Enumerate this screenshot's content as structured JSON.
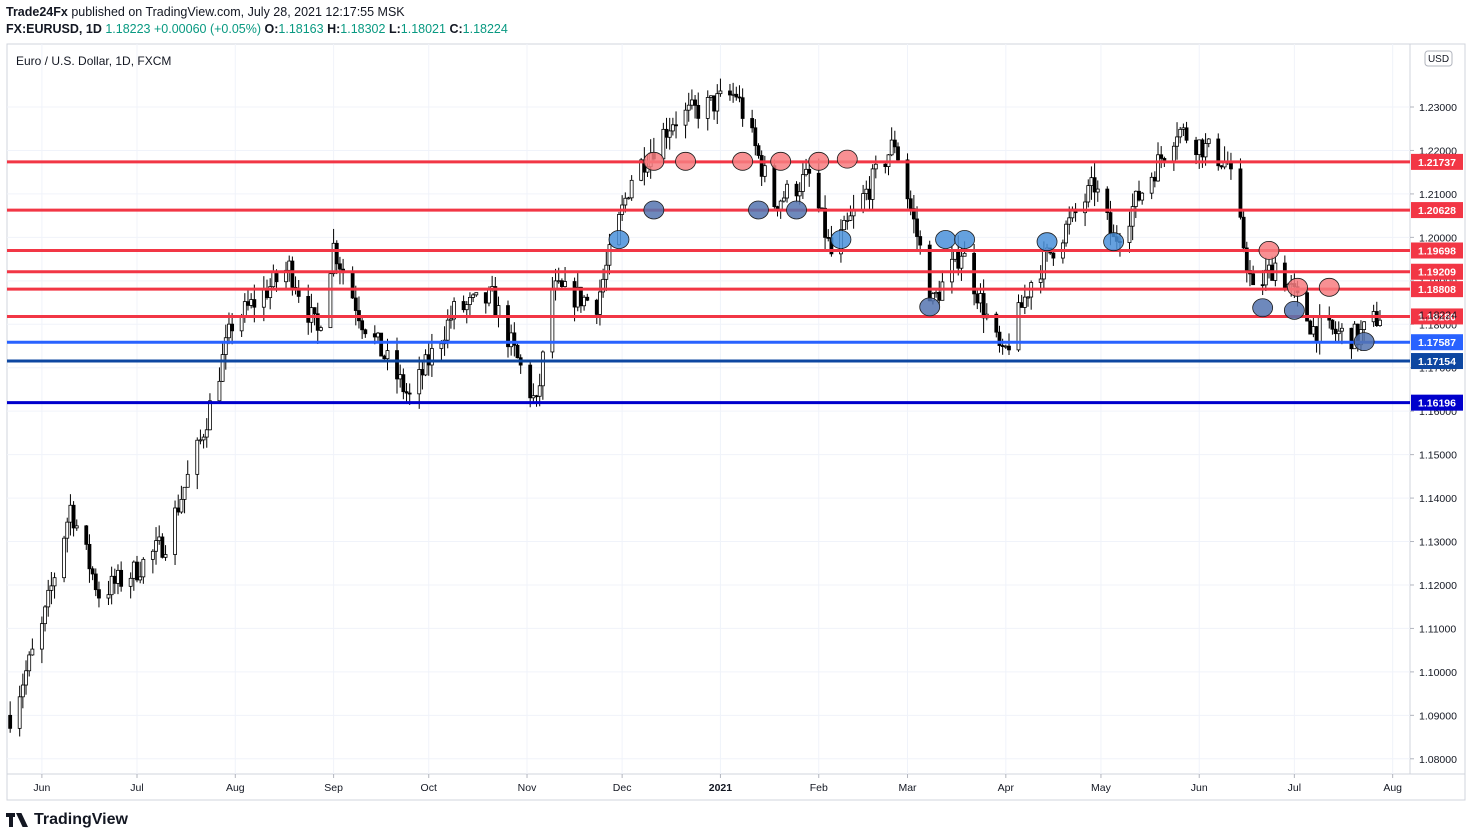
{
  "header": {
    "publisher": "Trade24Fx",
    "published_text": "published on TradingView.com, July 28, 2021 12:17:55 MSK",
    "symbol": "FX:EURUSD, 1D",
    "last": "1.18223",
    "change": "+0.00060 (+0.05%)",
    "o_label": "O:",
    "o": "1.18163",
    "h_label": "H:",
    "h": "1.18302",
    "l_label": "L:",
    "l": "1.18021",
    "c_label": "C:",
    "c": "1.18224"
  },
  "footer": {
    "brand": "TradingView"
  },
  "chart_data": {
    "type": "candlestick",
    "title": "Euro / U.S. Dollar, 1D, FXCM",
    "currency_badge": "USD",
    "ylim": [
      1.0765,
      1.2445
    ],
    "y_ticks": [
      "1.08000",
      "1.09000",
      "1.10000",
      "1.11000",
      "1.12000",
      "1.13000",
      "1.14000",
      "1.15000",
      "1.16000",
      "1.17000",
      "1.18000",
      "1.19000",
      "1.20000",
      "1.21000",
      "1.22000",
      "1.23000"
    ],
    "x_ticks": [
      "Jun",
      "Jul",
      "Aug",
      "Sep",
      "Oct",
      "Nov",
      "Dec",
      "2021",
      "Feb",
      "Mar",
      "Apr",
      "May",
      "Jun",
      "Jul",
      "Aug"
    ],
    "last_price_label": "1.18224",
    "grid": true,
    "colors": {
      "red_line": "#f23645",
      "blue_line": "#2962ff",
      "navy_line": "#0d47a1",
      "dark_blue_line": "#0000cc",
      "candle": "#000000",
      "red_marker": "#f77c80",
      "blue_marker": "#4a90d9",
      "navy_marker": "#5574b0"
    },
    "levels": [
      {
        "value": 1.21737,
        "label": "1.21737",
        "color": "red"
      },
      {
        "value": 1.20628,
        "label": "1.20628",
        "color": "red"
      },
      {
        "value": 1.19698,
        "label": "1.19698",
        "color": "red"
      },
      {
        "value": 1.19209,
        "label": "1.19209",
        "color": "red"
      },
      {
        "value": 1.18808,
        "label": "1.18808",
        "color": "red"
      },
      {
        "value": 1.1818,
        "label": "1.18180",
        "color": "red"
      },
      {
        "value": 1.17587,
        "label": "1.17587",
        "color": "blue"
      },
      {
        "value": 1.17154,
        "label": "1.17154",
        "color": "navy"
      },
      {
        "value": 1.16196,
        "label": "1.16196",
        "color": "dark_blue"
      }
    ],
    "price_path": [
      [
        "May 22 2020",
        1.09
      ],
      [
        "Jun 1 2020",
        1.11
      ],
      [
        "Jun 10 2020",
        1.138
      ],
      [
        "Jun 19 2020",
        1.118
      ],
      [
        "Jun 30 2020",
        1.123
      ],
      [
        "Jul 10 2020",
        1.13
      ],
      [
        "Jul 21 2020",
        1.153
      ],
      [
        "Jul 31 2020",
        1.18
      ],
      [
        "Aug 18 2020",
        1.193
      ],
      [
        "Aug 27 2020",
        1.178
      ],
      [
        "Sep 1 2020",
        1.198
      ],
      [
        "Sep 10 2020",
        1.181
      ],
      [
        "Sep 25 2020",
        1.163
      ],
      [
        "Oct 9 2020",
        1.183
      ],
      [
        "Oct 21 2020",
        1.186
      ],
      [
        "Nov 4 2020",
        1.161
      ],
      [
        "Nov 9 2020",
        1.188
      ],
      [
        "Nov 23 2020",
        1.185
      ],
      [
        "Dec 4 2020",
        1.214
      ],
      [
        "Dec 17 2020",
        1.227
      ],
      [
        "Jan 6 2021",
        1.233
      ],
      [
        "Jan 18 2021",
        1.208
      ],
      [
        "Jan 29 2021",
        1.214
      ],
      [
        "Feb 5 2021",
        1.196
      ],
      [
        "Feb 25 2021",
        1.222
      ],
      [
        "Mar 9 2021",
        1.185
      ],
      [
        "Mar 18 2021",
        1.197
      ],
      [
        "Mar 31 2021",
        1.172
      ],
      [
        "Apr 9 2021",
        1.19
      ],
      [
        "Apr 29 2021",
        1.212
      ],
      [
        "May 5 2021",
        1.199
      ],
      [
        "May 25 2021",
        1.225
      ],
      [
        "Jun 10 2021",
        1.217
      ],
      [
        "Jun 18 2021",
        1.187
      ],
      [
        "Jun 25 2021",
        1.194
      ],
      [
        "Jul 7 2021",
        1.179
      ],
      [
        "Jul 21 2021",
        1.177
      ],
      [
        "Jul 28 2021",
        1.1822
      ]
    ],
    "red_markers": [
      [
        "Dec 11 2020",
        1.2175
      ],
      [
        "Dec 21 2020",
        1.2175
      ],
      [
        "Jan 8 2021",
        1.2175
      ],
      [
        "Jan 20 2021",
        1.2175
      ],
      [
        "Feb 1 2021",
        1.2175
      ],
      [
        "Feb 10 2021",
        1.218
      ],
      [
        "Jun 23 2021",
        1.197
      ],
      [
        "Jul 2 2021",
        1.1885
      ],
      [
        "Jul 12 2021",
        1.1885
      ]
    ],
    "blue_markers": [
      [
        "Nov 30 2020",
        1.1995
      ],
      [
        "Feb 8 2021",
        1.1995
      ],
      [
        "Mar 13 2021",
        1.1995
      ],
      [
        "Mar 19 2021",
        1.1995
      ],
      [
        "Apr 14 2021",
        1.199
      ],
      [
        "May 5 2021",
        1.199
      ]
    ],
    "navy_markers": [
      [
        "Dec 11 2020",
        1.2063
      ],
      [
        "Jan 13 2021",
        1.2063
      ],
      [
        "Jan 25 2021",
        1.2063
      ],
      [
        "Mar 8 2021",
        1.184
      ],
      [
        "Jun 21 2021",
        1.1838
      ],
      [
        "Jul 1 2021",
        1.1832
      ],
      [
        "Jul 23 2021",
        1.176
      ]
    ]
  }
}
